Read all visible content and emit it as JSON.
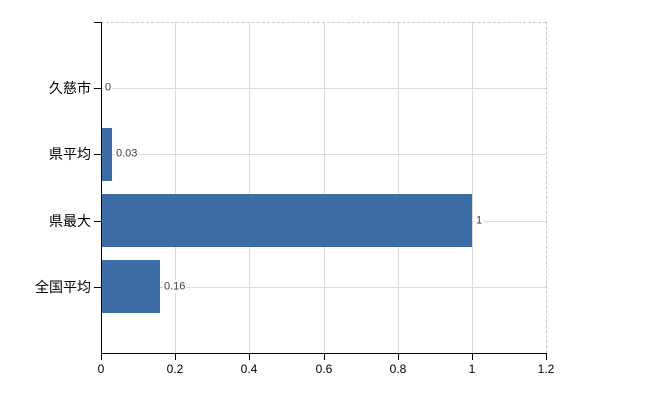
{
  "chart_data": {
    "type": "bar",
    "orientation": "horizontal",
    "title": "",
    "xlabel": "",
    "ylabel": "",
    "categories": [
      "久慈市",
      "県平均",
      "県最大",
      "全国平均"
    ],
    "values": [
      0,
      0.03,
      1,
      0.16
    ],
    "value_labels": [
      "0",
      "0.03",
      "1",
      "0.16"
    ],
    "xlim": [
      0,
      1.2
    ],
    "x_ticks": [
      0,
      0.2,
      0.4,
      0.6,
      0.8,
      1,
      1.2
    ],
    "x_tick_labels": [
      "0",
      "0.2",
      "0.4",
      "0.6",
      "0.8",
      "1",
      "1.2"
    ],
    "grid": true,
    "legend": false,
    "colors": {
      "bar": "#3c6da6",
      "gridline": "#d9d9d9",
      "plot_border_dashed": "#c9c9c9",
      "axis": "#000000",
      "value_label_text": "#3f3f3f",
      "tick_label_text": "#000000"
    }
  }
}
